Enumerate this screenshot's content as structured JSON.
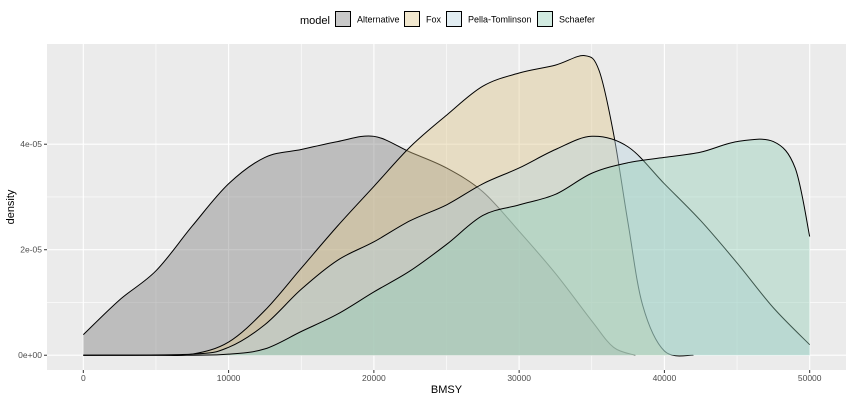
{
  "chart_data": {
    "type": "area",
    "xlabel": "BMSY",
    "ylabel": "density",
    "xlim": [
      -2500,
      52500
    ],
    "ylim": [
      -2.8e-06,
      5.9e-05
    ],
    "x_ticks": [
      0,
      10000,
      20000,
      30000,
      40000,
      50000
    ],
    "x_tick_labels": [
      "0",
      "10000",
      "20000",
      "30000",
      "40000",
      "50000"
    ],
    "y_ticks": [
      0,
      2e-05,
      4e-05
    ],
    "y_tick_labels": [
      "0e+00",
      "2e-05",
      "4e-05"
    ],
    "grid": true,
    "legend": {
      "title": "model",
      "position": "top"
    },
    "series": [
      {
        "name": "Alternative",
        "color": "#7f7f7f",
        "points": [
          [
            0,
            3.9e-06
          ],
          [
            2500,
            1.05e-05
          ],
          [
            5000,
            1.6e-05
          ],
          [
            7500,
            2.45e-05
          ],
          [
            10000,
            3.25e-05
          ],
          [
            12500,
            3.75e-05
          ],
          [
            15000,
            3.9e-05
          ],
          [
            17500,
            4.05e-05
          ],
          [
            20000,
            4.15e-05
          ],
          [
            22500,
            3.85e-05
          ],
          [
            25000,
            3.55e-05
          ],
          [
            27500,
            3.1e-05
          ],
          [
            30000,
            2.35e-05
          ],
          [
            32500,
            1.55e-05
          ],
          [
            35000,
            6.5e-06
          ],
          [
            36500,
            1.5e-06
          ],
          [
            38000,
            0
          ]
        ]
      },
      {
        "name": "Fox",
        "color": "#e0c98c",
        "points": [
          [
            0,
            0
          ],
          [
            5000,
            0
          ],
          [
            7500,
            2e-07
          ],
          [
            10000,
            2.5e-06
          ],
          [
            12500,
            8.5e-06
          ],
          [
            15000,
            1.65e-05
          ],
          [
            17500,
            2.45e-05
          ],
          [
            20000,
            3.2e-05
          ],
          [
            22500,
            3.95e-05
          ],
          [
            25000,
            4.55e-05
          ],
          [
            27500,
            5.1e-05
          ],
          [
            30000,
            5.35e-05
          ],
          [
            32500,
            5.5e-05
          ],
          [
            34500,
            5.68e-05
          ],
          [
            35500,
            5.4e-05
          ],
          [
            36500,
            4.2e-05
          ],
          [
            37500,
            2.5e-05
          ],
          [
            38500,
            9.5e-06
          ],
          [
            40000,
            8e-07
          ],
          [
            42000,
            0
          ]
        ]
      },
      {
        "name": "Pella-Tomlinson",
        "color": "#b9d3e0",
        "points": [
          [
            0,
            0
          ],
          [
            7500,
            2e-07
          ],
          [
            10000,
            1.5e-06
          ],
          [
            12500,
            5.8e-06
          ],
          [
            15000,
            1.25e-05
          ],
          [
            17500,
            1.8e-05
          ],
          [
            20000,
            2.15e-05
          ],
          [
            22500,
            2.55e-05
          ],
          [
            25000,
            2.85e-05
          ],
          [
            27500,
            3.25e-05
          ],
          [
            30000,
            3.55e-05
          ],
          [
            32500,
            3.9e-05
          ],
          [
            35000,
            4.15e-05
          ],
          [
            37500,
            3.95e-05
          ],
          [
            40000,
            3.25e-05
          ],
          [
            42500,
            2.55e-05
          ],
          [
            45000,
            1.75e-05
          ],
          [
            47500,
            9e-06
          ],
          [
            50000,
            2e-06
          ]
        ]
      },
      {
        "name": "Schaefer",
        "color": "#93cfb7",
        "points": [
          [
            0,
            0
          ],
          [
            7500,
            0
          ],
          [
            10000,
            2e-07
          ],
          [
            12500,
            1.2e-06
          ],
          [
            15000,
            4.5e-06
          ],
          [
            17500,
            7.8e-06
          ],
          [
            20000,
            1.2e-05
          ],
          [
            22500,
            1.6e-05
          ],
          [
            25000,
            2.1e-05
          ],
          [
            27500,
            2.65e-05
          ],
          [
            30000,
            2.85e-05
          ],
          [
            32500,
            3.05e-05
          ],
          [
            35000,
            3.45e-05
          ],
          [
            37500,
            3.65e-05
          ],
          [
            40000,
            3.75e-05
          ],
          [
            42500,
            3.85e-05
          ],
          [
            45000,
            4.05e-05
          ],
          [
            47500,
            4.05e-05
          ],
          [
            49000,
            3.55e-05
          ],
          [
            50000,
            2.25e-05
          ]
        ]
      }
    ]
  }
}
